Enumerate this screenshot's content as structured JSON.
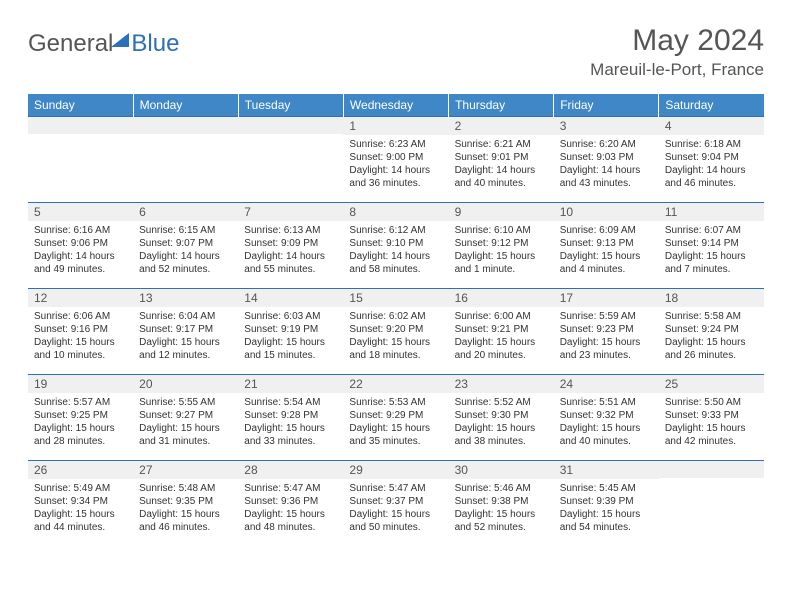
{
  "logo": {
    "general": "General",
    "blue": "Blue"
  },
  "title": "May 2024",
  "location": "Mareuil-le-Port, France",
  "colors": {
    "header_bg": "#3f87c7",
    "accent": "#2d6fb8",
    "daynum_bg": "#f0f0f0",
    "text": "#333333",
    "muted": "#555555"
  },
  "dow": [
    "Sunday",
    "Monday",
    "Tuesday",
    "Wednesday",
    "Thursday",
    "Friday",
    "Saturday"
  ],
  "weeks": [
    [
      {
        "n": "",
        "lines": []
      },
      {
        "n": "",
        "lines": []
      },
      {
        "n": "",
        "lines": []
      },
      {
        "n": "1",
        "lines": [
          "Sunrise: 6:23 AM",
          "Sunset: 9:00 PM",
          "Daylight: 14 hours",
          "and 36 minutes."
        ]
      },
      {
        "n": "2",
        "lines": [
          "Sunrise: 6:21 AM",
          "Sunset: 9:01 PM",
          "Daylight: 14 hours",
          "and 40 minutes."
        ]
      },
      {
        "n": "3",
        "lines": [
          "Sunrise: 6:20 AM",
          "Sunset: 9:03 PM",
          "Daylight: 14 hours",
          "and 43 minutes."
        ]
      },
      {
        "n": "4",
        "lines": [
          "Sunrise: 6:18 AM",
          "Sunset: 9:04 PM",
          "Daylight: 14 hours",
          "and 46 minutes."
        ]
      }
    ],
    [
      {
        "n": "5",
        "lines": [
          "Sunrise: 6:16 AM",
          "Sunset: 9:06 PM",
          "Daylight: 14 hours",
          "and 49 minutes."
        ]
      },
      {
        "n": "6",
        "lines": [
          "Sunrise: 6:15 AM",
          "Sunset: 9:07 PM",
          "Daylight: 14 hours",
          "and 52 minutes."
        ]
      },
      {
        "n": "7",
        "lines": [
          "Sunrise: 6:13 AM",
          "Sunset: 9:09 PM",
          "Daylight: 14 hours",
          "and 55 minutes."
        ]
      },
      {
        "n": "8",
        "lines": [
          "Sunrise: 6:12 AM",
          "Sunset: 9:10 PM",
          "Daylight: 14 hours",
          "and 58 minutes."
        ]
      },
      {
        "n": "9",
        "lines": [
          "Sunrise: 6:10 AM",
          "Sunset: 9:12 PM",
          "Daylight: 15 hours",
          "and 1 minute."
        ]
      },
      {
        "n": "10",
        "lines": [
          "Sunrise: 6:09 AM",
          "Sunset: 9:13 PM",
          "Daylight: 15 hours",
          "and 4 minutes."
        ]
      },
      {
        "n": "11",
        "lines": [
          "Sunrise: 6:07 AM",
          "Sunset: 9:14 PM",
          "Daylight: 15 hours",
          "and 7 minutes."
        ]
      }
    ],
    [
      {
        "n": "12",
        "lines": [
          "Sunrise: 6:06 AM",
          "Sunset: 9:16 PM",
          "Daylight: 15 hours",
          "and 10 minutes."
        ]
      },
      {
        "n": "13",
        "lines": [
          "Sunrise: 6:04 AM",
          "Sunset: 9:17 PM",
          "Daylight: 15 hours",
          "and 12 minutes."
        ]
      },
      {
        "n": "14",
        "lines": [
          "Sunrise: 6:03 AM",
          "Sunset: 9:19 PM",
          "Daylight: 15 hours",
          "and 15 minutes."
        ]
      },
      {
        "n": "15",
        "lines": [
          "Sunrise: 6:02 AM",
          "Sunset: 9:20 PM",
          "Daylight: 15 hours",
          "and 18 minutes."
        ]
      },
      {
        "n": "16",
        "lines": [
          "Sunrise: 6:00 AM",
          "Sunset: 9:21 PM",
          "Daylight: 15 hours",
          "and 20 minutes."
        ]
      },
      {
        "n": "17",
        "lines": [
          "Sunrise: 5:59 AM",
          "Sunset: 9:23 PM",
          "Daylight: 15 hours",
          "and 23 minutes."
        ]
      },
      {
        "n": "18",
        "lines": [
          "Sunrise: 5:58 AM",
          "Sunset: 9:24 PM",
          "Daylight: 15 hours",
          "and 26 minutes."
        ]
      }
    ],
    [
      {
        "n": "19",
        "lines": [
          "Sunrise: 5:57 AM",
          "Sunset: 9:25 PM",
          "Daylight: 15 hours",
          "and 28 minutes."
        ]
      },
      {
        "n": "20",
        "lines": [
          "Sunrise: 5:55 AM",
          "Sunset: 9:27 PM",
          "Daylight: 15 hours",
          "and 31 minutes."
        ]
      },
      {
        "n": "21",
        "lines": [
          "Sunrise: 5:54 AM",
          "Sunset: 9:28 PM",
          "Daylight: 15 hours",
          "and 33 minutes."
        ]
      },
      {
        "n": "22",
        "lines": [
          "Sunrise: 5:53 AM",
          "Sunset: 9:29 PM",
          "Daylight: 15 hours",
          "and 35 minutes."
        ]
      },
      {
        "n": "23",
        "lines": [
          "Sunrise: 5:52 AM",
          "Sunset: 9:30 PM",
          "Daylight: 15 hours",
          "and 38 minutes."
        ]
      },
      {
        "n": "24",
        "lines": [
          "Sunrise: 5:51 AM",
          "Sunset: 9:32 PM",
          "Daylight: 15 hours",
          "and 40 minutes."
        ]
      },
      {
        "n": "25",
        "lines": [
          "Sunrise: 5:50 AM",
          "Sunset: 9:33 PM",
          "Daylight: 15 hours",
          "and 42 minutes."
        ]
      }
    ],
    [
      {
        "n": "26",
        "lines": [
          "Sunrise: 5:49 AM",
          "Sunset: 9:34 PM",
          "Daylight: 15 hours",
          "and 44 minutes."
        ]
      },
      {
        "n": "27",
        "lines": [
          "Sunrise: 5:48 AM",
          "Sunset: 9:35 PM",
          "Daylight: 15 hours",
          "and 46 minutes."
        ]
      },
      {
        "n": "28",
        "lines": [
          "Sunrise: 5:47 AM",
          "Sunset: 9:36 PM",
          "Daylight: 15 hours",
          "and 48 minutes."
        ]
      },
      {
        "n": "29",
        "lines": [
          "Sunrise: 5:47 AM",
          "Sunset: 9:37 PM",
          "Daylight: 15 hours",
          "and 50 minutes."
        ]
      },
      {
        "n": "30",
        "lines": [
          "Sunrise: 5:46 AM",
          "Sunset: 9:38 PM",
          "Daylight: 15 hours",
          "and 52 minutes."
        ]
      },
      {
        "n": "31",
        "lines": [
          "Sunrise: 5:45 AM",
          "Sunset: 9:39 PM",
          "Daylight: 15 hours",
          "and 54 minutes."
        ]
      },
      {
        "n": "",
        "lines": []
      }
    ]
  ]
}
